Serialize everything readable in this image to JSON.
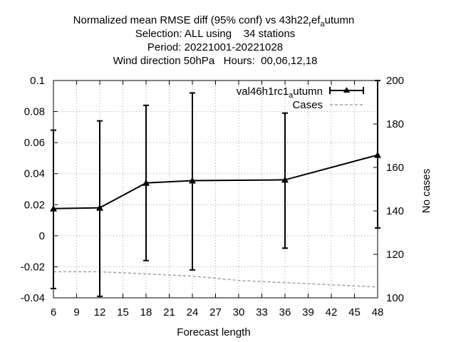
{
  "chart_data": {
    "type": "line",
    "title_lines": [
      "Normalized mean RMSE diff (95% conf) vs 43h22",
      "Selection: ALL using    34 stations",
      "Period: 20221001-20221028",
      "Wind direction 50hPa   Hours:  00,06,12,18"
    ],
    "title_subscripts": [
      "r",
      "ef",
      "a",
      "utumn"
    ],
    "xlabel": "Forecast length",
    "ylabel": "",
    "y2label": "No cases",
    "xlim": [
      6,
      48
    ],
    "ylim": [
      -0.04,
      0.1
    ],
    "y2lim": [
      100,
      200
    ],
    "x_ticks": [
      "6",
      "9",
      "12",
      "15",
      "18",
      "21",
      "24",
      "27",
      "30",
      "33",
      "36",
      "39",
      "42",
      "45",
      "48"
    ],
    "y_ticks": [
      "-0.04",
      "-0.02",
      "0",
      "0.02",
      "0.04",
      "0.06",
      "0.08",
      "0.1"
    ],
    "y2_ticks": [
      "100",
      "120",
      "140",
      "160",
      "180",
      "200"
    ],
    "grid": true,
    "legend_placement": "top-right",
    "series": [
      {
        "name_main": "val46h1rc1",
        "name_sub": "a",
        "name_tail": "utumn",
        "axis": "left",
        "x": [
          6,
          12,
          18,
          24,
          36,
          48
        ],
        "y": [
          0.0175,
          0.018,
          0.034,
          0.0355,
          0.036,
          0.052
        ],
        "y_low": [
          -0.034,
          -0.039,
          -0.016,
          -0.022,
          -0.008,
          0.005
        ],
        "y_high": [
          0.068,
          0.074,
          0.084,
          0.092,
          0.079,
          0.1
        ]
      },
      {
        "name": "Cases",
        "axis": "right",
        "x": [
          6,
          9,
          12,
          15,
          18,
          21,
          24,
          27,
          30,
          33,
          36,
          39,
          42,
          45,
          48
        ],
        "y": [
          112,
          112,
          112,
          111.5,
          111,
          110.5,
          110,
          109,
          108,
          107.5,
          107,
          106.5,
          106,
          105.5,
          105
        ]
      }
    ]
  }
}
